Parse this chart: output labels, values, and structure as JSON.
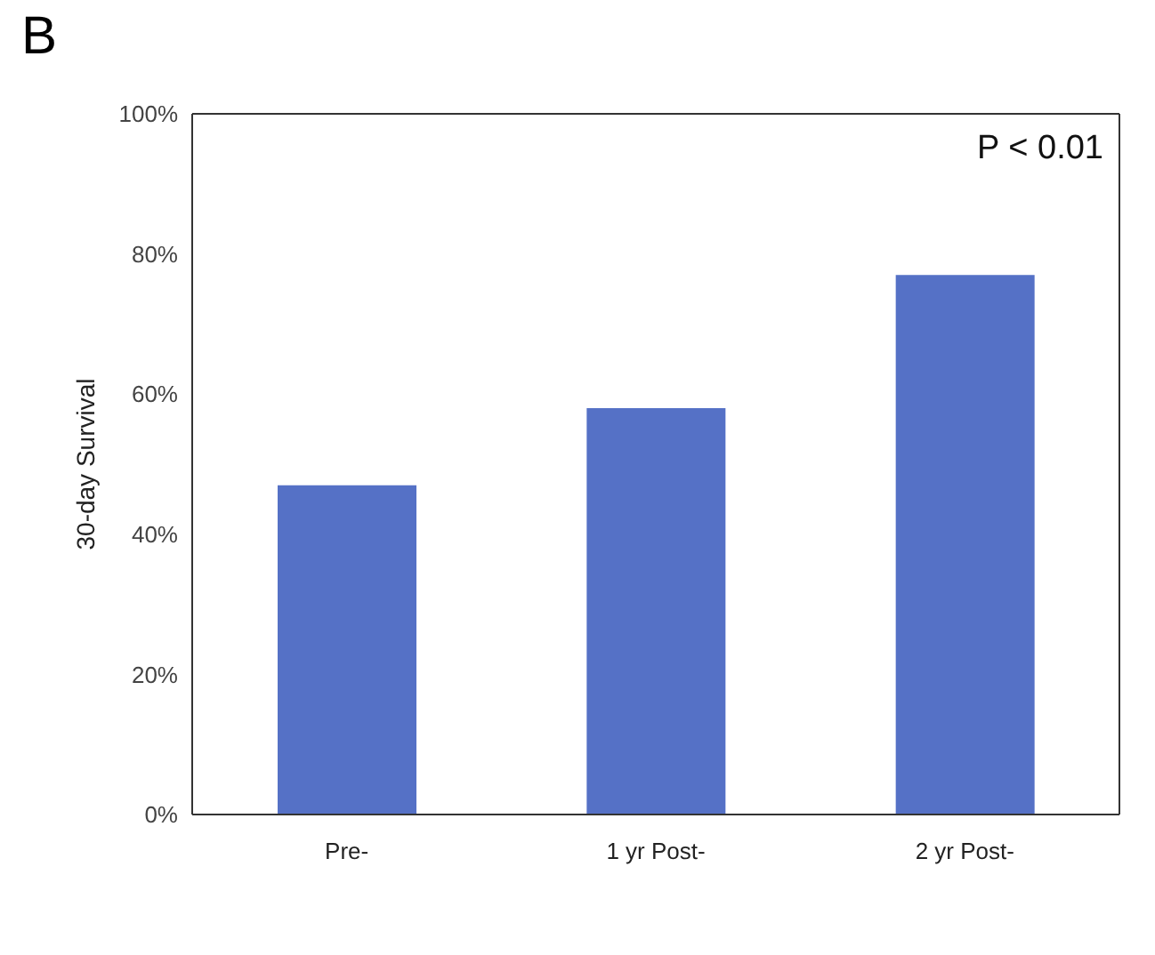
{
  "chart_data": {
    "type": "bar",
    "title": "B",
    "ylabel": "30-day Survival",
    "categories": [
      "Pre-",
      "1 yr Post-",
      "2 yr Post-"
    ],
    "values": [
      47,
      58,
      77
    ],
    "color": "#5571c6",
    "ylim": [
      0,
      100
    ],
    "yticks": [
      {
        "value": 0,
        "label": "0%"
      },
      {
        "value": 20,
        "label": "20%"
      },
      {
        "value": 40,
        "label": "40%"
      },
      {
        "value": 60,
        "label": "60%"
      },
      {
        "value": 80,
        "label": "80%"
      },
      {
        "value": 100,
        "label": "100%"
      }
    ],
    "annotations": [
      "P < 0.01"
    ],
    "grid": false,
    "legend": false
  }
}
